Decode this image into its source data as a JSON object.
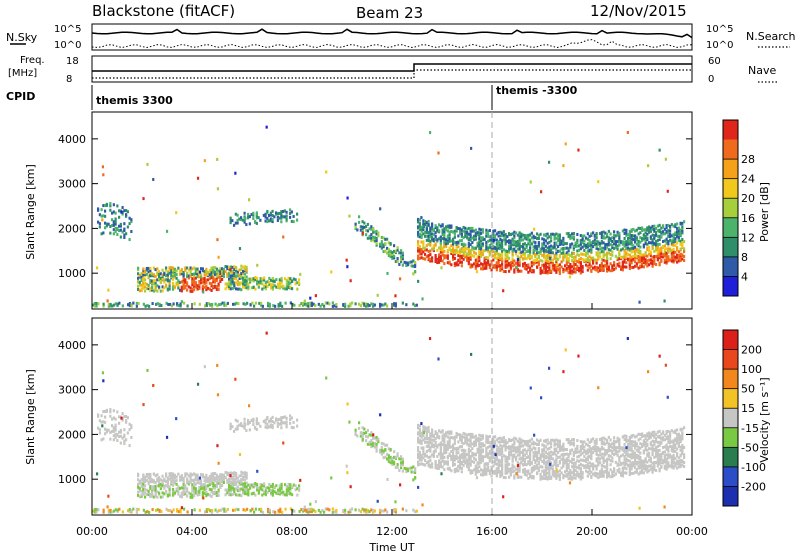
{
  "header": {
    "title_left": "Blackstone (fitACF)",
    "title_center": "Beam 23",
    "title_right": "12/Nov/2015"
  },
  "summary": {
    "nsky_label": "N.Sky",
    "nsky_ticks": [
      "10^5",
      "10^0"
    ],
    "nsearch_label": "N.Search",
    "nsearch_ticks": [
      "10^5",
      "10^0"
    ],
    "freq_label_1": "Freq.",
    "freq_label_2": "[MHz]",
    "freq_ticks": [
      "18",
      "8"
    ],
    "nave_label": "Nave",
    "nave_ticks": [
      "60",
      "0"
    ],
    "cpid_label": "CPID",
    "cpid_entries": [
      {
        "time": 0,
        "name": "themis 3300"
      },
      {
        "time": 16,
        "name": "themis -3300"
      }
    ]
  },
  "chart_data": [
    {
      "type": "heatmap",
      "name": "power",
      "ylabel": "Slant Range [km]",
      "yticks": [
        1000,
        2000,
        3000,
        4000
      ],
      "ylim": [
        200,
        4600
      ],
      "xlim": [
        0,
        24
      ],
      "colorbar_label": "Power [dB]",
      "colorbar_ticks": [
        4,
        8,
        12,
        16,
        20,
        24,
        28
      ],
      "colorbar_colors": [
        "#1f1fd9",
        "#2e5aa8",
        "#2f8f6a",
        "#4bb36b",
        "#a6cf3c",
        "#f0c91c",
        "#f5a21a",
        "#f06a1d",
        "#e0261a"
      ]
    },
    {
      "type": "heatmap",
      "name": "velocity",
      "ylabel": "Slant Range [km]",
      "yticks": [
        1000,
        2000,
        3000,
        4000
      ],
      "ylim": [
        200,
        4600
      ],
      "xlim": [
        0,
        24
      ],
      "xlabel": "Time UT",
      "xticks": [
        "00:00",
        "04:00",
        "08:00",
        "12:00",
        "16:00",
        "20:00",
        "00:00"
      ],
      "colorbar_label": "Velocity [m s⁻¹]",
      "colorbar_ticks": [
        200,
        100,
        50,
        15,
        -15,
        -50,
        -100,
        -200
      ],
      "colorbar_colors": [
        "#1b2fb0",
        "#2b4dc8",
        "#2a7d4f",
        "#7ac943",
        "#c6c6c4",
        "#f3c225",
        "#f2881d",
        "#e8481c",
        "#dd1f1a"
      ]
    }
  ]
}
